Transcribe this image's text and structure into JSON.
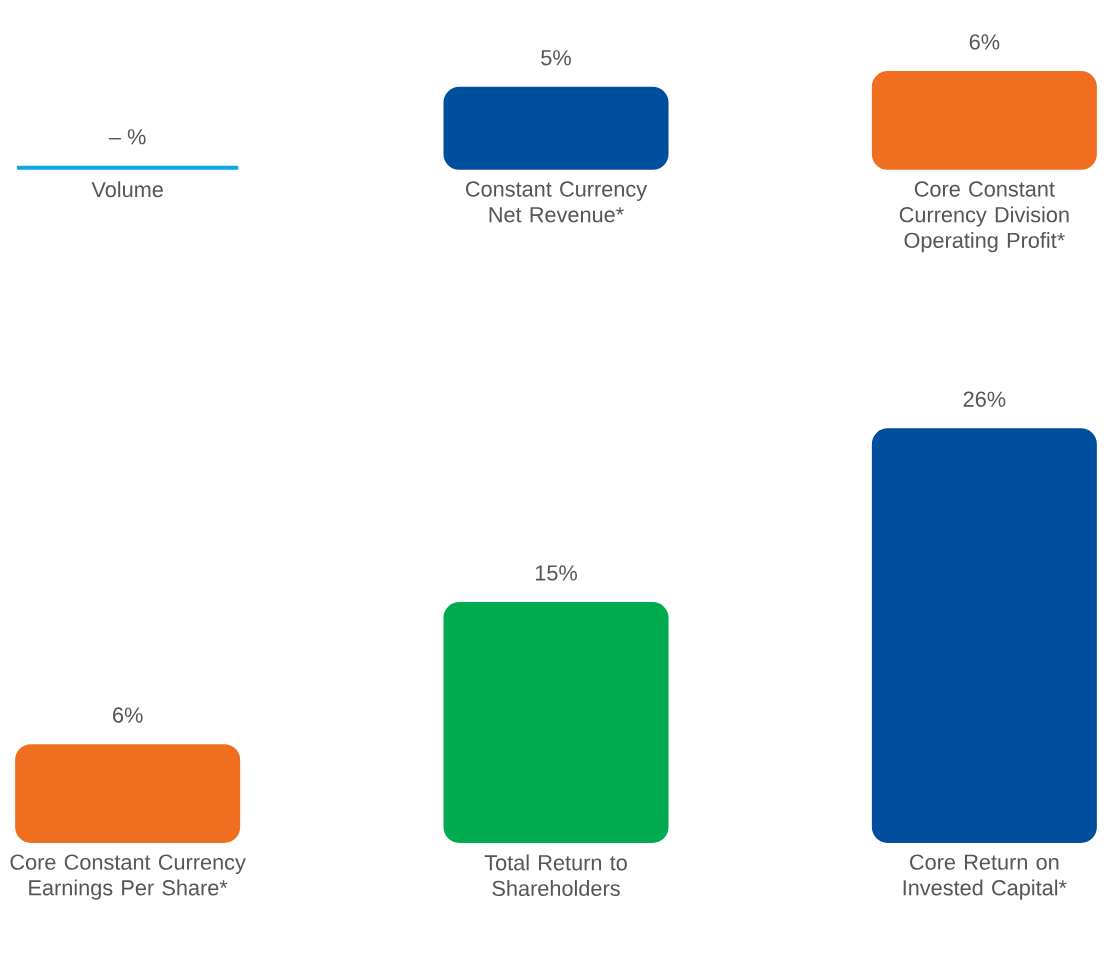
{
  "chart_data": [
    {
      "type": "bar",
      "categories": [
        "Volume",
        "Constant Currency Net Revenue*",
        "Core Constant Currency Division Operating Profit*"
      ],
      "values": [
        0,
        5,
        6
      ],
      "colors": [
        "#0ea5e0",
        "#004f9e",
        "#f06e20"
      ],
      "value_labels": [
        "– %",
        "5%",
        "6%"
      ]
    },
    {
      "type": "bar",
      "categories": [
        "Core Constant Currency Earnings Per Share*",
        "Total Return to Shareholders",
        "Core Return on Invested Capital*"
      ],
      "values": [
        6,
        15,
        26
      ],
      "colors": [
        "#f06e20",
        "#00aa4f",
        "#004f9e"
      ],
      "value_labels": [
        "6%",
        "15%",
        "26%"
      ]
    }
  ]
}
